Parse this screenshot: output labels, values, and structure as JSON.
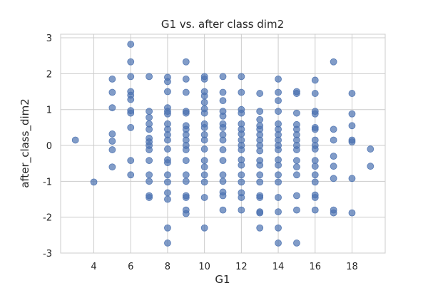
{
  "chart_data": {
    "type": "scatter",
    "title": "G1 vs. after class dim2",
    "xlabel": "G1",
    "ylabel": "after_class_dim2",
    "xlim": [
      2.2,
      19.8
    ],
    "ylim": [
      -3.0,
      3.1
    ],
    "xticks": [
      4,
      6,
      8,
      10,
      12,
      14,
      16,
      18
    ],
    "yticks": [
      -3,
      -2,
      -1,
      0,
      1,
      2,
      3
    ],
    "grid": true,
    "point_color": "#4c72b0",
    "point_opacity": 0.7,
    "points": [
      [
        3,
        0.15
      ],
      [
        4,
        -1.02
      ],
      [
        5,
        1.85
      ],
      [
        5,
        1.48
      ],
      [
        5,
        1.05
      ],
      [
        5,
        0.32
      ],
      [
        5,
        0.12
      ],
      [
        5,
        -0.12
      ],
      [
        5,
        -0.6
      ],
      [
        6,
        2.82
      ],
      [
        6,
        2.33
      ],
      [
        6,
        1.92
      ],
      [
        6,
        1.5
      ],
      [
        6,
        1.4
      ],
      [
        6,
        1.28
      ],
      [
        6,
        0.97
      ],
      [
        6,
        0.9
      ],
      [
        6,
        0.5
      ],
      [
        6,
        -0.42
      ],
      [
        6,
        -0.82
      ],
      [
        7,
        1.92
      ],
      [
        7,
        0.95
      ],
      [
        7,
        0.78
      ],
      [
        7,
        0.6
      ],
      [
        7,
        0.45
      ],
      [
        7,
        0.2
      ],
      [
        7,
        0.1
      ],
      [
        7,
        0.0
      ],
      [
        7,
        -0.12
      ],
      [
        7,
        -0.42
      ],
      [
        7,
        -0.82
      ],
      [
        7,
        -1.0
      ],
      [
        7,
        -1.4
      ],
      [
        7,
        -1.45
      ],
      [
        8,
        1.9
      ],
      [
        8,
        1.78
      ],
      [
        8,
        1.5
      ],
      [
        8,
        1.05
      ],
      [
        8,
        0.95
      ],
      [
        8,
        0.88
      ],
      [
        8,
        0.6
      ],
      [
        8,
        0.45
      ],
      [
        8,
        0.3
      ],
      [
        8,
        0.15
      ],
      [
        8,
        -0.1
      ],
      [
        8,
        -0.4
      ],
      [
        8,
        -0.48
      ],
      [
        8,
        -0.82
      ],
      [
        8,
        -1.02
      ],
      [
        8,
        -1.32
      ],
      [
        8,
        -1.5
      ],
      [
        8,
        -2.3
      ],
      [
        8,
        -2.72
      ],
      [
        9,
        2.33
      ],
      [
        9,
        1.85
      ],
      [
        9,
        1.48
      ],
      [
        9,
        0.95
      ],
      [
        9,
        0.9
      ],
      [
        9,
        0.55
      ],
      [
        9,
        0.45
      ],
      [
        9,
        0.3
      ],
      [
        9,
        0.15
      ],
      [
        9,
        0.0
      ],
      [
        9,
        -0.12
      ],
      [
        9,
        -0.42
      ],
      [
        9,
        -0.82
      ],
      [
        9,
        -1.0
      ],
      [
        9,
        -1.4
      ],
      [
        9,
        -1.45
      ],
      [
        9,
        -1.8
      ],
      [
        9,
        -1.9
      ],
      [
        10,
        1.92
      ],
      [
        10,
        1.85
      ],
      [
        10,
        1.5
      ],
      [
        10,
        1.38
      ],
      [
        10,
        1.2
      ],
      [
        10,
        1.02
      ],
      [
        10,
        0.9
      ],
      [
        10,
        0.6
      ],
      [
        10,
        0.5
      ],
      [
        10,
        0.3
      ],
      [
        10,
        0.15
      ],
      [
        10,
        -0.1
      ],
      [
        10,
        -0.42
      ],
      [
        10,
        -0.6
      ],
      [
        10,
        -0.82
      ],
      [
        10,
        -1.02
      ],
      [
        10,
        -1.45
      ],
      [
        10,
        -2.3
      ],
      [
        11,
        1.92
      ],
      [
        11,
        1.48
      ],
      [
        11,
        1.25
      ],
      [
        11,
        0.95
      ],
      [
        11,
        0.82
      ],
      [
        11,
        0.6
      ],
      [
        11,
        0.5
      ],
      [
        11,
        0.3
      ],
      [
        11,
        0.15
      ],
      [
        11,
        -0.12
      ],
      [
        11,
        -0.42
      ],
      [
        11,
        -0.82
      ],
      [
        11,
        -1.0
      ],
      [
        11,
        -1.3
      ],
      [
        11,
        -1.4
      ],
      [
        11,
        -1.8
      ],
      [
        12,
        1.92
      ],
      [
        12,
        1.48
      ],
      [
        12,
        1.0
      ],
      [
        12,
        0.9
      ],
      [
        12,
        0.6
      ],
      [
        12,
        0.45
      ],
      [
        12,
        0.32
      ],
      [
        12,
        0.15
      ],
      [
        12,
        0.0
      ],
      [
        12,
        -0.12
      ],
      [
        12,
        -0.4
      ],
      [
        12,
        -0.55
      ],
      [
        12,
        -0.82
      ],
      [
        12,
        -1.02
      ],
      [
        12,
        -1.32
      ],
      [
        12,
        -1.45
      ],
      [
        12,
        -1.8
      ],
      [
        13,
        1.45
      ],
      [
        13,
        0.95
      ],
      [
        13,
        0.72
      ],
      [
        13,
        0.55
      ],
      [
        13,
        0.45
      ],
      [
        13,
        0.3
      ],
      [
        13,
        0.15
      ],
      [
        13,
        0.0
      ],
      [
        13,
        -0.15
      ],
      [
        13,
        -0.42
      ],
      [
        13,
        -0.55
      ],
      [
        13,
        -0.82
      ],
      [
        13,
        -1.02
      ],
      [
        13,
        -1.4
      ],
      [
        13,
        -1.45
      ],
      [
        13,
        -1.85
      ],
      [
        13,
        -1.88
      ],
      [
        13,
        -2.3
      ],
      [
        14,
        1.85
      ],
      [
        14,
        1.48
      ],
      [
        14,
        1.25
      ],
      [
        14,
        0.95
      ],
      [
        14,
        0.6
      ],
      [
        14,
        0.45
      ],
      [
        14,
        0.3
      ],
      [
        14,
        0.15
      ],
      [
        14,
        0.0
      ],
      [
        14,
        -0.12
      ],
      [
        14,
        -0.4
      ],
      [
        14,
        -0.55
      ],
      [
        14,
        -0.82
      ],
      [
        14,
        -1.02
      ],
      [
        14,
        -1.45
      ],
      [
        14,
        -1.85
      ],
      [
        14,
        -2.3
      ],
      [
        14,
        -2.72
      ],
      [
        15,
        1.5
      ],
      [
        15,
        1.45
      ],
      [
        15,
        0.9
      ],
      [
        15,
        0.58
      ],
      [
        15,
        0.45
      ],
      [
        15,
        0.3
      ],
      [
        15,
        0.15
      ],
      [
        15,
        0.0
      ],
      [
        15,
        -0.12
      ],
      [
        15,
        -0.42
      ],
      [
        15,
        -0.6
      ],
      [
        15,
        -0.82
      ],
      [
        15,
        -1.4
      ],
      [
        15,
        -1.8
      ],
      [
        15,
        -2.72
      ],
      [
        16,
        1.82
      ],
      [
        16,
        1.45
      ],
      [
        16,
        0.95
      ],
      [
        16,
        0.88
      ],
      [
        16,
        0.5
      ],
      [
        16,
        0.45
      ],
      [
        16,
        0.15
      ],
      [
        16,
        0.0
      ],
      [
        16,
        -0.1
      ],
      [
        16,
        -0.42
      ],
      [
        16,
        -0.58
      ],
      [
        16,
        -0.82
      ],
      [
        16,
        -1.02
      ],
      [
        16,
        -1.38
      ],
      [
        16,
        -1.45
      ],
      [
        16,
        -1.8
      ],
      [
        17,
        2.33
      ],
      [
        17,
        0.45
      ],
      [
        17,
        0.15
      ],
      [
        17,
        -0.3
      ],
      [
        17,
        -0.58
      ],
      [
        17,
        -0.92
      ],
      [
        17,
        -1.8
      ],
      [
        17,
        -1.88
      ],
      [
        18,
        1.45
      ],
      [
        18,
        0.88
      ],
      [
        18,
        0.55
      ],
      [
        18,
        0.15
      ],
      [
        18,
        0.1
      ],
      [
        18,
        -0.92
      ],
      [
        18,
        -1.88
      ],
      [
        19,
        -0.1
      ],
      [
        19,
        -0.58
      ]
    ]
  }
}
